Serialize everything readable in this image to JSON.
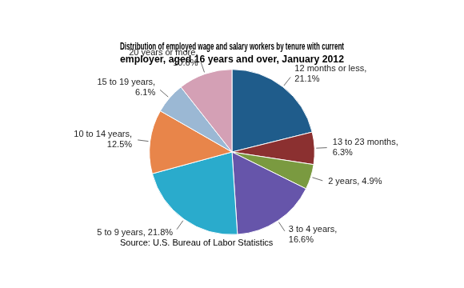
{
  "chart_data": {
    "type": "pie",
    "title": "Distribution of employed wage and salary workers by tenure with current\nemployer, aged 16 years and over, January 2012",
    "categories": [
      "12 months or less,\n21.1%",
      "13 to 23 months,\n6.3%",
      "2 years, 4.9%",
      "3 to 4 years,\n16.6%",
      "5 to 9 years, 21.8%",
      "10 to 14 years,\n12.5%",
      "15 to 19 years,\n6.1%",
      "20 years or more,\n10.6%"
    ],
    "values": [
      21.1,
      6.3,
      4.9,
      16.6,
      21.8,
      12.5,
      6.1,
      10.6
    ],
    "colors": [
      "#1F5C8B",
      "#8B3030",
      "#7A9A40",
      "#6655AA",
      "#2AABCC",
      "#E8854A",
      "#9BB8D4",
      "#D4A0B5"
    ],
    "annotations": [
      "Source: U.S. Bureau of Labor Statistics"
    ]
  }
}
